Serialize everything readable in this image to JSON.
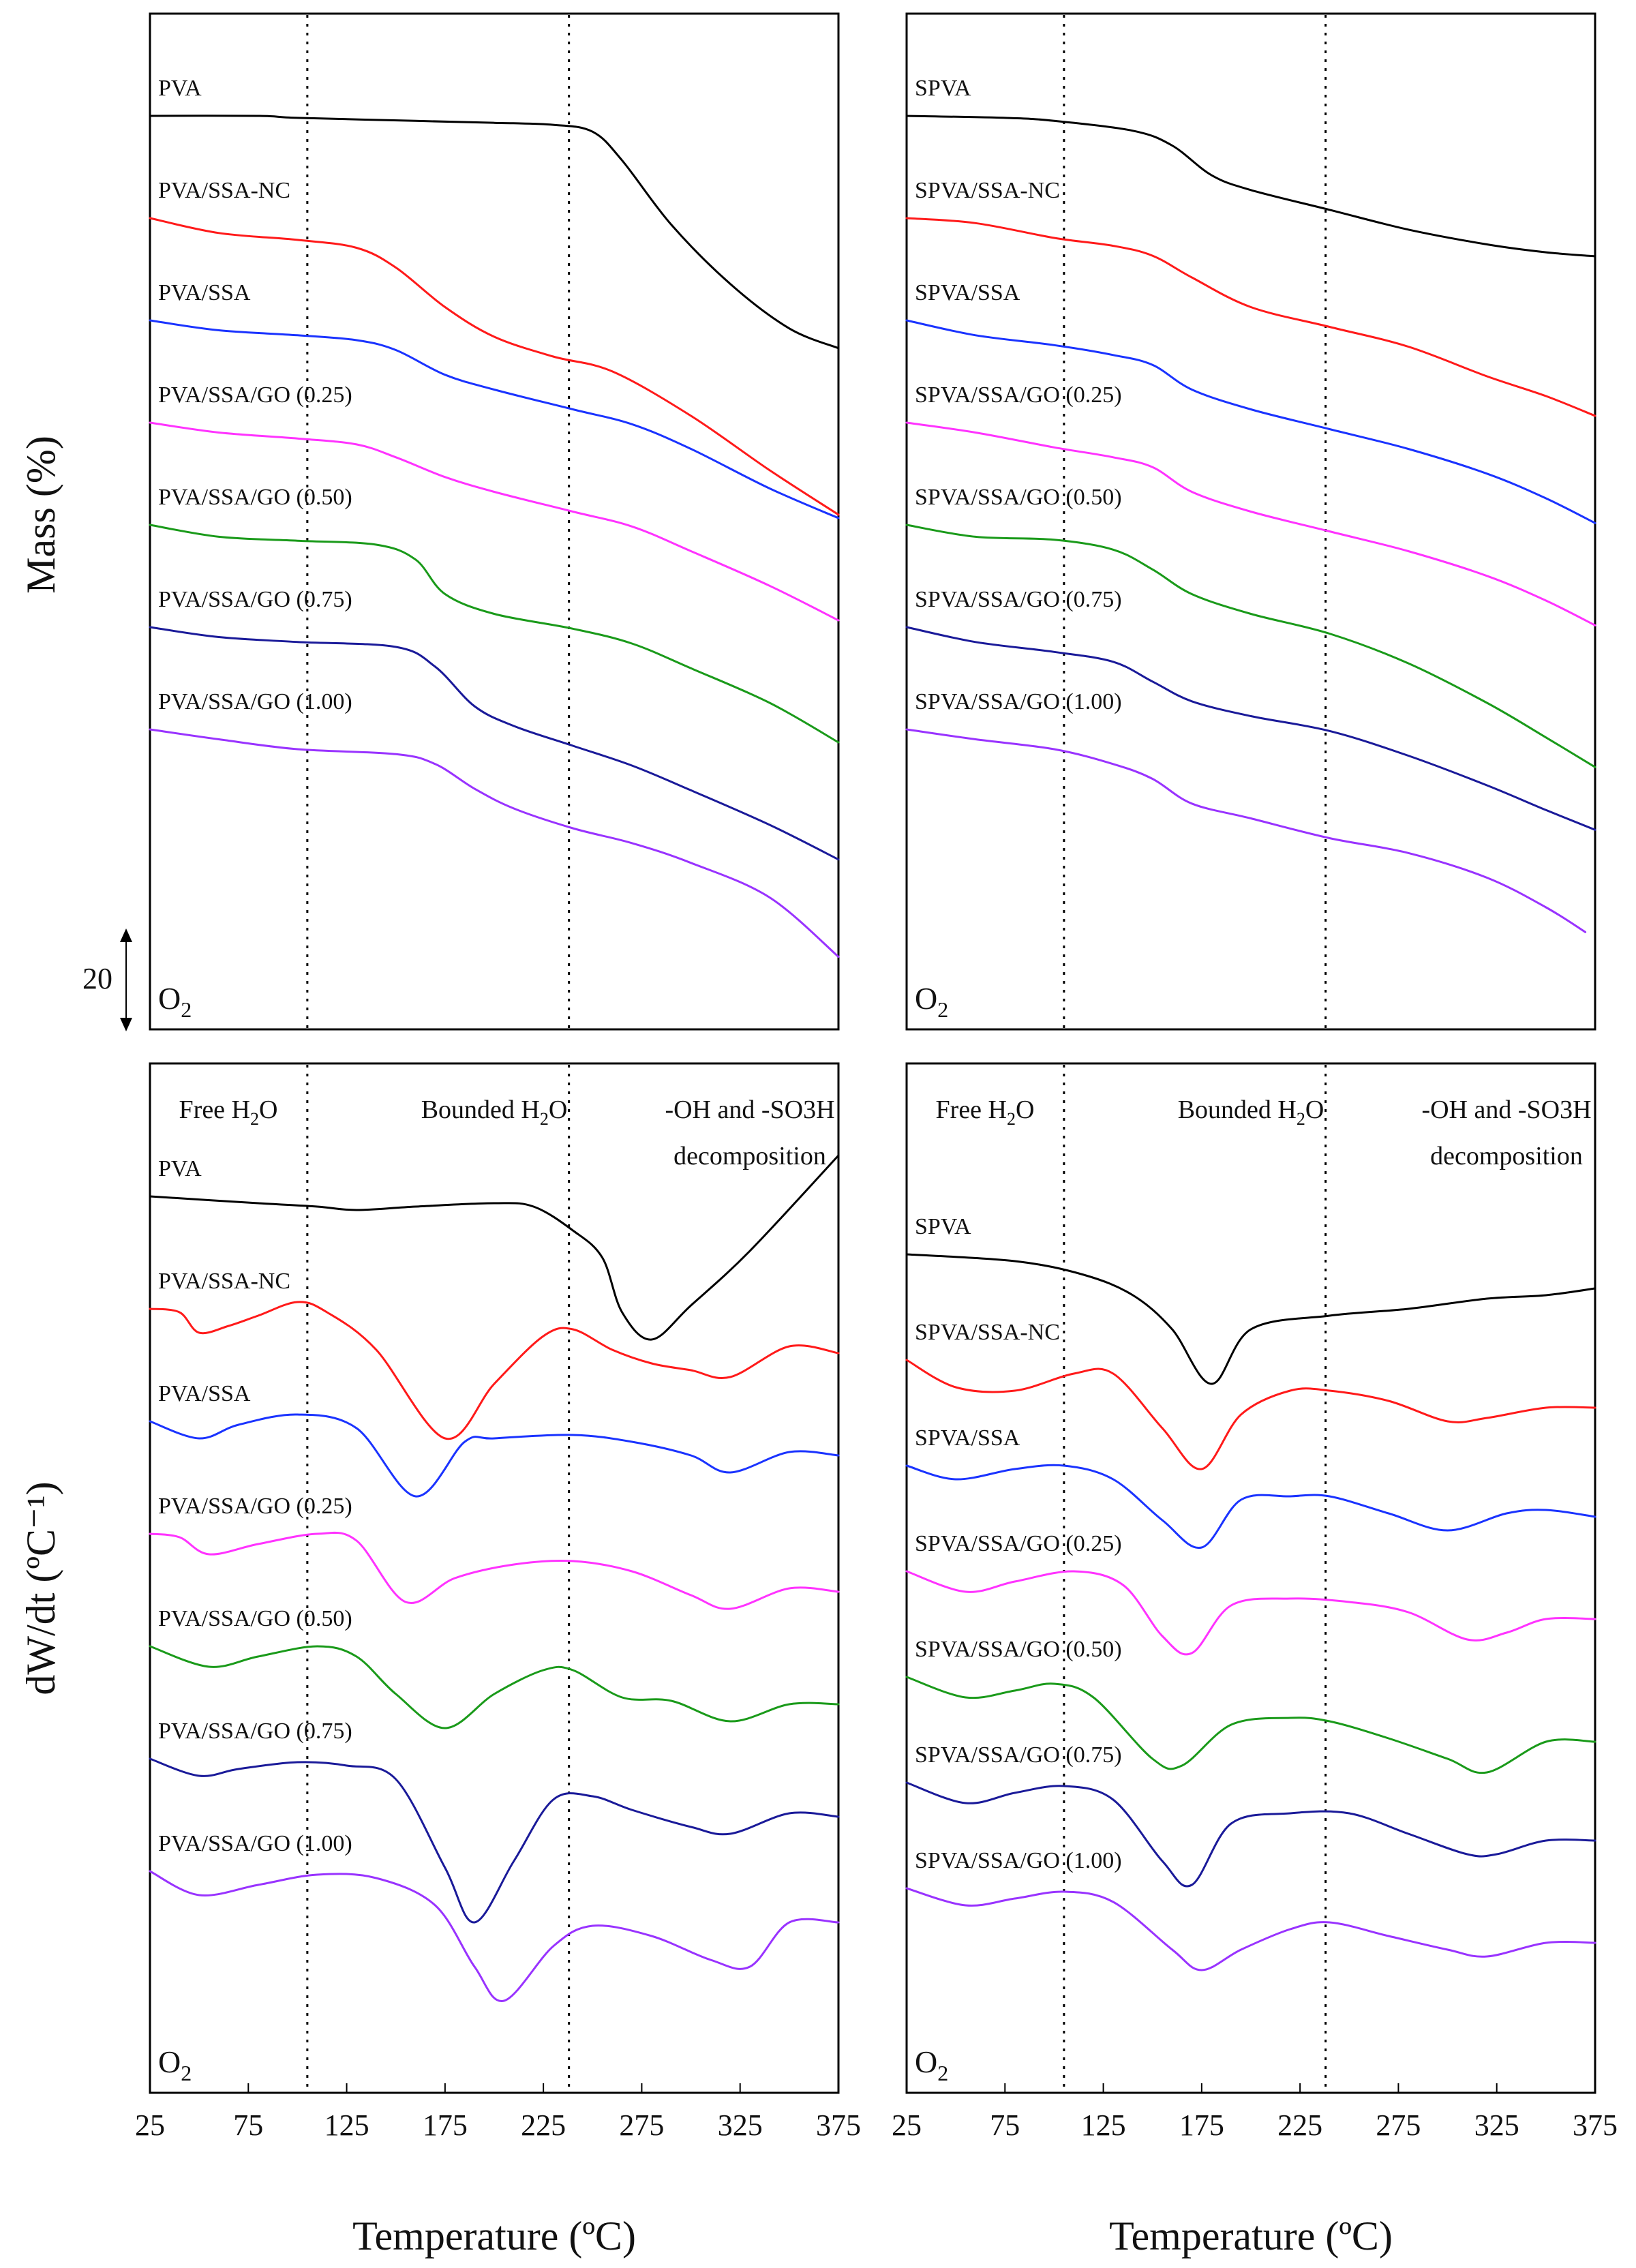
{
  "chart_data": [
    {
      "id": "tga-pva",
      "type": "line",
      "subtitle": "O2",
      "ylabel": "Mass (%)",
      "scale_bar": "20",
      "xlim": [
        25,
        375
      ],
      "vlines": [
        105,
        238
      ],
      "series": [
        {
          "name": "PVA",
          "color": "#000000",
          "x": [
            25,
            80,
            100,
            160,
            200,
            230,
            250,
            265,
            290,
            320,
            350,
            375
          ],
          "y": [
            0,
            0,
            -2,
            -5,
            -7,
            -9,
            -16,
            -45,
            -110,
            -170,
            -215,
            -235
          ]
        },
        {
          "name": "PVA/SSA-NC",
          "color": "#ff1a1a",
          "x": [
            25,
            60,
            100,
            130,
            150,
            175,
            200,
            230,
            260,
            300,
            340,
            375
          ],
          "y": [
            0,
            -15,
            -22,
            -30,
            -50,
            -90,
            -120,
            -140,
            -155,
            -200,
            -255,
            -300
          ]
        },
        {
          "name": "PVA/SSA",
          "color": "#1a33ff",
          "x": [
            25,
            60,
            100,
            130,
            150,
            175,
            200,
            240,
            270,
            300,
            340,
            375
          ],
          "y": [
            0,
            -10,
            -15,
            -20,
            -30,
            -55,
            -70,
            -90,
            -105,
            -130,
            -170,
            -200
          ]
        },
        {
          "name": "PVA/SSA/GO (0.25)",
          "color": "#ff33ff",
          "x": [
            25,
            60,
            100,
            130,
            150,
            175,
            200,
            240,
            270,
            300,
            340,
            375
          ],
          "y": [
            0,
            -10,
            -16,
            -22,
            -35,
            -55,
            -70,
            -90,
            -105,
            -130,
            -165,
            -200
          ]
        },
        {
          "name": "PVA/SSA/GO (0.50)",
          "color": "#1a9a1a",
          "x": [
            25,
            60,
            100,
            140,
            160,
            175,
            200,
            240,
            270,
            300,
            340,
            375
          ],
          "y": [
            0,
            -12,
            -16,
            -20,
            -35,
            -70,
            -90,
            -105,
            -120,
            -145,
            -180,
            -220
          ]
        },
        {
          "name": "PVA/SSA/GO (0.75)",
          "color": "#1a1a99",
          "x": [
            25,
            60,
            100,
            150,
            170,
            190,
            210,
            240,
            270,
            300,
            340,
            375
          ],
          "y": [
            0,
            -10,
            -15,
            -20,
            -40,
            -80,
            -100,
            -120,
            -140,
            -165,
            -200,
            -235
          ]
        },
        {
          "name": "PVA/SSA/GO (1.00)",
          "color": "#9933ff",
          "x": [
            25,
            60,
            100,
            150,
            170,
            190,
            210,
            240,
            270,
            300,
            340,
            375
          ],
          "y": [
            0,
            -10,
            -20,
            -25,
            -35,
            -60,
            -80,
            -100,
            -115,
            -135,
            -170,
            -230
          ]
        }
      ]
    },
    {
      "id": "tga-spva",
      "type": "line",
      "subtitle": "O2",
      "xlim": [
        25,
        375
      ],
      "vlines": [
        105,
        238
      ],
      "series": [
        {
          "name": "SPVA",
          "color": "#000000",
          "x": [
            25,
            75,
            100,
            140,
            160,
            180,
            200,
            240,
            280,
            320,
            350,
            375
          ],
          "y": [
            0,
            -2,
            -5,
            -15,
            -30,
            -60,
            -75,
            -95,
            -115,
            -130,
            -138,
            -142
          ]
        },
        {
          "name": "SPVA/SSA-NC",
          "color": "#ff1a1a",
          "x": [
            25,
            60,
            100,
            130,
            150,
            170,
            200,
            240,
            280,
            320,
            350,
            375
          ],
          "y": [
            0,
            -5,
            -20,
            -28,
            -38,
            -60,
            -90,
            -110,
            -130,
            -160,
            -180,
            -200
          ]
        },
        {
          "name": "SPVA/SSA",
          "color": "#1a33ff",
          "x": [
            25,
            60,
            100,
            130,
            150,
            170,
            200,
            240,
            280,
            320,
            350,
            375
          ],
          "y": [
            0,
            -15,
            -25,
            -35,
            -45,
            -70,
            -90,
            -110,
            -130,
            -155,
            -180,
            -205
          ]
        },
        {
          "name": "SPVA/SSA/GO (0.25)",
          "color": "#ff33ff",
          "x": [
            25,
            60,
            100,
            130,
            150,
            170,
            200,
            240,
            280,
            320,
            350,
            375
          ],
          "y": [
            0,
            -10,
            -25,
            -35,
            -45,
            -70,
            -90,
            -110,
            -130,
            -155,
            -180,
            -205
          ]
        },
        {
          "name": "SPVA/SSA/GO (0.50)",
          "color": "#1a9a1a",
          "x": [
            25,
            60,
            100,
            130,
            150,
            170,
            200,
            240,
            280,
            320,
            350,
            375
          ],
          "y": [
            0,
            -12,
            -15,
            -25,
            -45,
            -70,
            -90,
            -110,
            -140,
            -180,
            -215,
            -245
          ]
        },
        {
          "name": "SPVA/SSA/GO (0.75)",
          "color": "#1a1a99",
          "x": [
            25,
            60,
            100,
            130,
            150,
            170,
            200,
            240,
            280,
            320,
            350,
            375
          ],
          "y": [
            0,
            -15,
            -25,
            -35,
            -55,
            -75,
            -90,
            -105,
            -130,
            -160,
            -185,
            -205
          ]
        },
        {
          "name": "SPVA/SSA/GO (1.00)",
          "color": "#9933ff",
          "x": [
            25,
            60,
            100,
            130,
            150,
            170,
            200,
            240,
            280,
            320,
            350,
            370
          ],
          "y": [
            0,
            -10,
            -20,
            -35,
            -50,
            -75,
            -90,
            -110,
            -125,
            -150,
            -180,
            -205
          ]
        }
      ]
    },
    {
      "id": "dtg-pva",
      "type": "line",
      "subtitle": "O2",
      "ylabel": "dW/dt (ºC⁻¹)",
      "xlabel": "Temperature (ºC)",
      "xlim": [
        25,
        375
      ],
      "xticks": [
        "25",
        "75",
        "125",
        "175",
        "225",
        "275",
        "325",
        "375"
      ],
      "vlines": [
        105,
        238
      ],
      "regions": [
        "Free H2O",
        "Bounded H2O",
        "-OH and -SO3H",
        "decomposition"
      ],
      "series": [
        {
          "name": "PVA",
          "color": "#000000",
          "x": [
            25,
            80,
            110,
            130,
            160,
            200,
            220,
            240,
            255,
            265,
            280,
            300,
            330,
            375
          ],
          "y": [
            0,
            -10,
            -15,
            -20,
            -15,
            -10,
            -15,
            -50,
            -90,
            -170,
            -210,
            -160,
            -80,
            60
          ]
        },
        {
          "name": "PVA/SSA-NC",
          "color": "#ff1a1a",
          "x": [
            25,
            40,
            50,
            65,
            80,
            100,
            115,
            140,
            175,
            200,
            225,
            240,
            260,
            280,
            300,
            320,
            350,
            375
          ],
          "y": [
            0,
            -5,
            -35,
            -25,
            -10,
            10,
            -5,
            -60,
            -190,
            -110,
            -40,
            -30,
            -60,
            -80,
            -90,
            -100,
            -55,
            -65
          ]
        },
        {
          "name": "PVA/SSA",
          "color": "#1a33ff",
          "x": [
            25,
            50,
            70,
            100,
            130,
            160,
            185,
            200,
            240,
            270,
            300,
            320,
            350,
            375
          ],
          "y": [
            0,
            -25,
            -5,
            10,
            -10,
            -110,
            -30,
            -25,
            -20,
            -30,
            -50,
            -75,
            -45,
            -50
          ]
        },
        {
          "name": "PVA/SSA/GO (0.25)",
          "color": "#ff33ff",
          "x": [
            25,
            40,
            55,
            80,
            110,
            130,
            155,
            180,
            210,
            240,
            270,
            300,
            320,
            350,
            375
          ],
          "y": [
            0,
            -5,
            -30,
            -15,
            0,
            -10,
            -100,
            -65,
            -45,
            -40,
            -55,
            -90,
            -110,
            -80,
            -85
          ]
        },
        {
          "name": "PVA/SSA/GO (0.50)",
          "color": "#1a9a1a",
          "x": [
            25,
            55,
            80,
            110,
            130,
            150,
            175,
            200,
            225,
            240,
            265,
            290,
            320,
            350,
            375
          ],
          "y": [
            0,
            -30,
            -15,
            0,
            -15,
            -70,
            -120,
            -70,
            -35,
            -35,
            -75,
            -80,
            -110,
            -85,
            -85
          ]
        },
        {
          "name": "PVA/SSA/GO (0.75)",
          "color": "#1a1a99",
          "x": [
            25,
            50,
            70,
            100,
            125,
            150,
            175,
            190,
            210,
            230,
            250,
            270,
            300,
            320,
            350,
            375
          ],
          "y": [
            0,
            -25,
            -15,
            -5,
            -10,
            -30,
            -160,
            -240,
            -150,
            -60,
            -55,
            -75,
            -100,
            -110,
            -80,
            -85
          ]
        },
        {
          "name": "PVA/SSA/GO (1.00)",
          "color": "#9933ff",
          "x": [
            25,
            50,
            80,
            110,
            140,
            170,
            190,
            205,
            230,
            250,
            280,
            310,
            330,
            350,
            375
          ],
          "y": [
            0,
            -35,
            -20,
            -5,
            -10,
            -50,
            -140,
            -190,
            -110,
            -80,
            -95,
            -130,
            -140,
            -75,
            -75
          ]
        }
      ]
    },
    {
      "id": "dtg-spva",
      "type": "line",
      "subtitle": "O2",
      "xlabel": "Temperature (ºC)",
      "xlim": [
        25,
        375
      ],
      "xticks": [
        "25",
        "75",
        "125",
        "175",
        "225",
        "275",
        "325",
        "375"
      ],
      "vlines": [
        105,
        238
      ],
      "regions": [
        "Free H2O",
        "Bounded H2O",
        "-OH and -SO3H",
        "decomposition"
      ],
      "series": [
        {
          "name": "SPVA",
          "color": "#000000",
          "x": [
            25,
            80,
            115,
            140,
            160,
            180,
            200,
            240,
            280,
            320,
            350,
            375
          ],
          "y": [
            0,
            -10,
            -30,
            -60,
            -110,
            -190,
            -110,
            -90,
            -80,
            -65,
            -60,
            -50
          ]
        },
        {
          "name": "SPVA/SSA-NC",
          "color": "#ff1a1a",
          "x": [
            25,
            50,
            80,
            110,
            130,
            155,
            175,
            195,
            220,
            240,
            270,
            300,
            320,
            350,
            375
          ],
          "y": [
            0,
            -40,
            -45,
            -20,
            -20,
            -100,
            -160,
            -80,
            -45,
            -45,
            -60,
            -90,
            -85,
            -70,
            -70
          ]
        },
        {
          "name": "SPVA/SSA",
          "color": "#1a33ff",
          "x": [
            25,
            50,
            80,
            105,
            130,
            155,
            175,
            195,
            220,
            240,
            270,
            300,
            330,
            350,
            375
          ],
          "y": [
            0,
            -20,
            -5,
            0,
            -20,
            -80,
            -120,
            -50,
            -45,
            -45,
            -70,
            -95,
            -70,
            -65,
            -75
          ]
        },
        {
          "name": "SPVA/SSA/GO (0.25)",
          "color": "#ff33ff",
          "x": [
            25,
            55,
            80,
            110,
            135,
            155,
            170,
            190,
            220,
            250,
            280,
            310,
            330,
            350,
            375
          ],
          "y": [
            0,
            -30,
            -15,
            0,
            -20,
            -95,
            -120,
            -50,
            -40,
            -45,
            -60,
            -100,
            -90,
            -70,
            -70
          ]
        },
        {
          "name": "SPVA/SSA/GO (0.50)",
          "color": "#1a9a1a",
          "x": [
            25,
            55,
            80,
            100,
            120,
            150,
            165,
            190,
            220,
            240,
            270,
            300,
            320,
            350,
            375
          ],
          "y": [
            0,
            -30,
            -20,
            -10,
            -30,
            -120,
            -130,
            -70,
            -60,
            -65,
            -90,
            -120,
            -140,
            -95,
            -95
          ]
        },
        {
          "name": "SPVA/SSA/GO (0.75)",
          "color": "#1a1a99",
          "x": [
            25,
            55,
            80,
            105,
            130,
            155,
            170,
            190,
            220,
            250,
            280,
            310,
            325,
            350,
            375
          ],
          "y": [
            0,
            -30,
            -15,
            -5,
            -25,
            -115,
            -150,
            -60,
            -45,
            -45,
            -75,
            -105,
            -105,
            -85,
            -85
          ]
        },
        {
          "name": "SPVA/SSA/GO (1.00)",
          "color": "#9933ff",
          "x": [
            25,
            55,
            80,
            105,
            130,
            160,
            175,
            195,
            220,
            240,
            270,
            300,
            320,
            350,
            375
          ],
          "y": [
            0,
            -25,
            -15,
            -5,
            -20,
            -90,
            -120,
            -90,
            -60,
            -50,
            -70,
            -90,
            -100,
            -80,
            -80
          ]
        }
      ]
    }
  ]
}
